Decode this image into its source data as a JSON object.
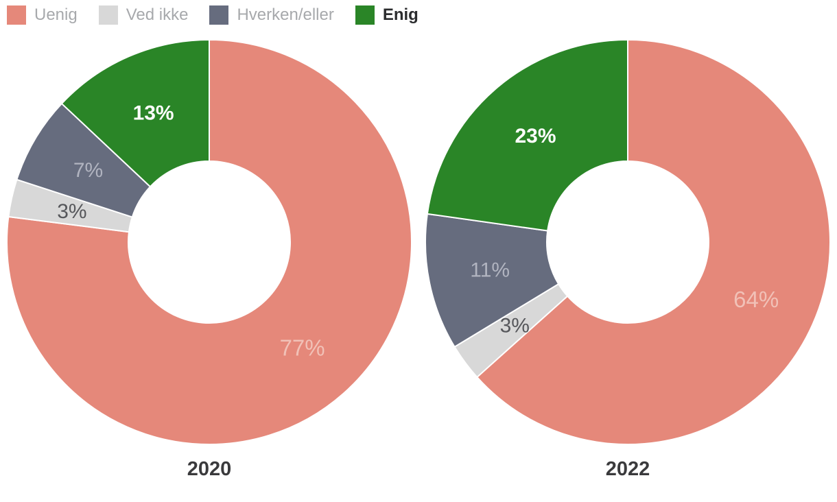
{
  "legend": {
    "items": [
      {
        "label": "Uenig",
        "color": "#e5887a",
        "bold": false
      },
      {
        "label": "Ved ikke",
        "color": "#d8d8d8",
        "bold": false
      },
      {
        "label": "Hverken/eller",
        "color": "#666c7e",
        "bold": false
      },
      {
        "label": "Enig",
        "color": "#2a8527",
        "bold": true
      }
    ],
    "text_color": "#a7a9ac",
    "active_text_color": "#2b2c2e"
  },
  "chart_data": [
    {
      "type": "pie",
      "subtype": "donut",
      "title": "2020",
      "categories": [
        "Uenig",
        "Ved ikke",
        "Hverken/eller",
        "Enig"
      ],
      "values": [
        77,
        3,
        7,
        13
      ],
      "labels": [
        "77%",
        "3%",
        "7%",
        "13%"
      ],
      "unit": "%",
      "colors": [
        "#e5887a",
        "#d8d8d8",
        "#666c7e",
        "#2a8527"
      ],
      "label_colors": [
        "#f1c1b7",
        "#56575b",
        "#b1b4c0",
        "#ffffff"
      ],
      "label_bold": [
        false,
        false,
        false,
        true
      ],
      "start_angle_deg": 0,
      "direction": "clockwise",
      "inner_radius_ratio": 0.4,
      "legend_position": "top",
      "slice_border_color": "#ffffff"
    },
    {
      "type": "pie",
      "subtype": "donut",
      "title": "2022",
      "categories": [
        "Uenig",
        "Ved ikke",
        "Hverken/eller",
        "Enig"
      ],
      "values": [
        64,
        3,
        11,
        23
      ],
      "labels": [
        "64%",
        "3%",
        "11%",
        "23%"
      ],
      "unit": "%",
      "colors": [
        "#e5887a",
        "#d8d8d8",
        "#666c7e",
        "#2a8527"
      ],
      "label_colors": [
        "#f1c1b7",
        "#56575b",
        "#b1b4c0",
        "#ffffff"
      ],
      "label_bold": [
        false,
        false,
        false,
        true
      ],
      "start_angle_deg": 0,
      "direction": "clockwise",
      "inner_radius_ratio": 0.4,
      "legend_position": "top",
      "slice_border_color": "#ffffff"
    }
  ]
}
